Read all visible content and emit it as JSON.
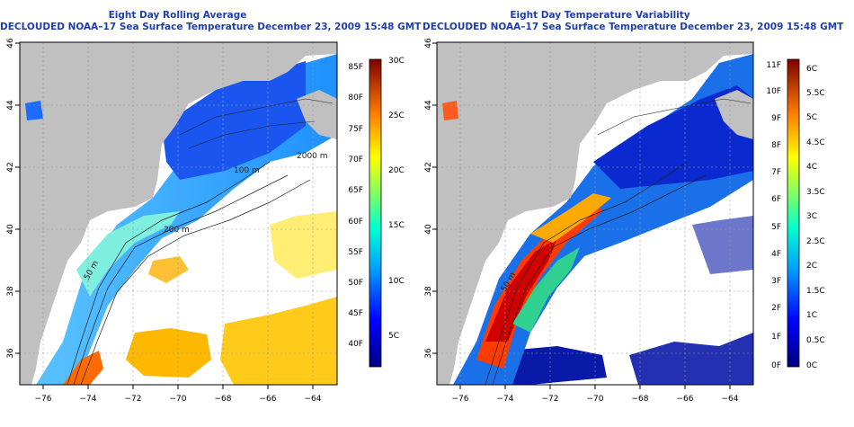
{
  "panels": [
    {
      "title_line1": "Eight Day Rolling Average",
      "title_line2": "DECLOUDED NOAA–17 Sea Surface Temperature December 23, 2009 15:48 GMT",
      "x_ticks": [
        "−76",
        "−74",
        "−72",
        "−70",
        "−68",
        "−66",
        "−64"
      ],
      "y_ticks": [
        "46",
        "44",
        "42",
        "40",
        "38",
        "36"
      ],
      "contour_labels": [
        "100 m",
        "2000 m",
        "200 m",
        "50 m"
      ],
      "colorbar_left": [
        "85F",
        "80F",
        "75F",
        "70F",
        "65F",
        "60F",
        "55F",
        "50F",
        "45F",
        "40F"
      ],
      "colorbar_right": [
        "30C",
        "25C",
        "20C",
        "15C",
        "10C",
        "5C"
      ]
    },
    {
      "title_line1": "Eight Day Temperature Variability",
      "title_line2": "DECLOUDED NOAA–17 Sea Surface Temperature December 23, 2009 15:48 GMT",
      "x_ticks": [
        "−76",
        "−74",
        "−72",
        "−70",
        "−68",
        "−66",
        "−64"
      ],
      "y_ticks": [
        "46",
        "44",
        "42",
        "40",
        "38",
        "36"
      ],
      "contour_labels": [
        "50 m"
      ],
      "colorbar_left": [
        "11F",
        "10F",
        "9F",
        "8F",
        "7F",
        "6F",
        "5F",
        "4F",
        "3F",
        "2F",
        "1F",
        "0F"
      ],
      "colorbar_right": [
        "6C",
        "5.5C",
        "5C",
        "4.5C",
        "4C",
        "3.5C",
        "3C",
        "2.5C",
        "2C",
        "1.5C",
        "1C",
        "0.5C",
        "0C"
      ]
    }
  ],
  "colors": {
    "title": "#1f3fa8",
    "land": "#c0c0c0",
    "ocean_nodata": "#ffffff"
  }
}
